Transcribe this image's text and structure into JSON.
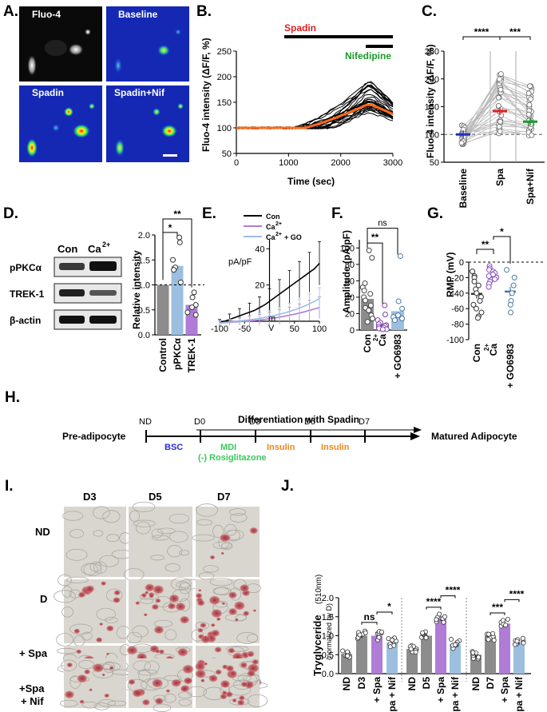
{
  "panels": {
    "A": {
      "label": "A.",
      "images": [
        "Fluo-4",
        "Baseline",
        "Spadin",
        "Spadin+Nif"
      ]
    },
    "B": {
      "label": "B.",
      "bars": [
        "Spadin",
        "Nifedipine"
      ],
      "ylabel": "Fluo-4 intensity (ΔF/F, %)",
      "xlabel": "Time (sec)",
      "yticks": [
        "50",
        "100",
        "150",
        "200",
        "250"
      ],
      "xticks": [
        "0",
        "1000",
        "2000",
        "3000"
      ]
    },
    "C": {
      "label": "C.",
      "ylabel": "Fluo-4 intensity (ΔF/F, %)",
      "yticks": [
        "50",
        "100",
        "150",
        "200",
        "250"
      ],
      "categories": [
        "Baseline",
        "Spa",
        "Spa+Nif"
      ],
      "sig": [
        "****",
        "***"
      ]
    },
    "D": {
      "label": "D.",
      "blot_cols": [
        "Con",
        "Ca"
      ],
      "blot_sup": "2+",
      "blot_rows": [
        "pPKCα",
        "TREK-1",
        "β-actin"
      ],
      "ylabel": "Relative intensity",
      "yticks": [
        "0.0",
        "0.5",
        "1.0",
        "1.5",
        "2.0"
      ],
      "categories": [
        "Control",
        "pPKCα",
        "TREK-1"
      ],
      "sig": [
        "*",
        "**"
      ]
    },
    "E": {
      "label": "E.",
      "legend": [
        "Con",
        "Ca",
        "Ca"
      ],
      "legend_sup": "2+",
      "legend_extra": "+ GO",
      "ylabel": "pA/pF",
      "xunit_m": "m",
      "xunit_v": "V",
      "yticks": [
        "20",
        "40"
      ],
      "xticks": [
        "-100",
        "-50",
        "50",
        "100"
      ]
    },
    "F": {
      "label": "F.",
      "ylabel": "Amplitude (pA/pF)",
      "yticks": [
        "0",
        "20",
        "40",
        "60",
        "80",
        "100"
      ],
      "categories": [
        "Con",
        "Ca",
        "+ GO6983"
      ],
      "sup": "2+",
      "sig": [
        "**",
        "ns"
      ]
    },
    "G": {
      "label": "G.",
      "ylabel": "RMP (mV)",
      "yticks": [
        "0",
        "-20",
        "-40",
        "-60",
        "-80",
        "-100"
      ],
      "categories": [
        "Con",
        "Ca",
        "+ GO6983"
      ],
      "sup": "2+",
      "sig": [
        "**",
        "*"
      ]
    },
    "H": {
      "label": "H.",
      "title": "Differentiation with Spadin",
      "start": "Pre-adipocyte",
      "end": "Matured Adipocyte",
      "days": [
        "ND",
        "D0",
        "D3",
        "D5",
        "D7"
      ],
      "steps": [
        "BSC",
        "MDI",
        "(-) Rosiglitazone",
        "Insulin",
        "Insulin"
      ]
    },
    "I": {
      "label": "I.",
      "cols": [
        "D3",
        "D5",
        "D7"
      ],
      "rows": [
        "ND",
        "D",
        "+ Spa",
        "+Spa",
        "+ Nif"
      ]
    },
    "J": {
      "label": "J.",
      "ylabel": "Tryglyceride",
      "ylabel_unit": "(510nm)",
      "ylabel2": "(normalized by D)",
      "yticks": [
        "0.0",
        "0.5",
        "1.0",
        "1.5",
        "2.0"
      ],
      "groups": [
        {
          "cats": [
            "ND",
            "D3",
            "+ Spa",
            "+ Spa + Nif"
          ],
          "sig": [
            "ns",
            "*"
          ]
        },
        {
          "cats": [
            "ND",
            "D5",
            "+ Spa",
            "+ Spa + Nif"
          ],
          "sig": [
            "****",
            "****"
          ]
        },
        {
          "cats": [
            "ND",
            "D7",
            "+ Spa",
            "+ Spa + Nif"
          ],
          "sig": [
            "***",
            "****"
          ]
        }
      ]
    }
  },
  "colors": {
    "orange": "#ff6a1a",
    "red": "#e02020",
    "green": "#1a9a2a",
    "gray": "#8c8c8c",
    "purple": "#b07cd6",
    "blue": "#9cbfe0",
    "mdi": "#38c95a",
    "bsc": "#2a2adf",
    "insulin": "#e88a1a"
  },
  "chart_data": [
    {
      "type": "bar",
      "title": "C",
      "categories": [
        "Baseline",
        "Spa",
        "Spa+Nif"
      ],
      "values": [
        100,
        142,
        123
      ],
      "ylim": [
        50,
        250
      ],
      "ylabel": "Fluo-4 intensity (ΔF/F, %)"
    },
    {
      "type": "bar",
      "title": "D",
      "categories": [
        "Control",
        "pPKCα",
        "TREK-1"
      ],
      "values": [
        1.0,
        1.38,
        0.6
      ],
      "points": [
        [],
        [
          1.95,
          1.85,
          1.5,
          1.35,
          1.3,
          1.05
        ],
        [
          0.85,
          0.75,
          0.6,
          0.55,
          0.45,
          0.4
        ]
      ],
      "ylim": [
        0,
        2.0
      ]
    },
    {
      "type": "line",
      "title": "E",
      "x": [
        -100,
        -90,
        -80,
        -70,
        -60,
        -50,
        -40,
        -30,
        -20,
        -10,
        0,
        10,
        20,
        30,
        40,
        50,
        60,
        70,
        80,
        90,
        100
      ],
      "series": [
        {
          "name": "Con",
          "values": [
            -1,
            0,
            1,
            2,
            3,
            4,
            5,
            6,
            7.5,
            9,
            11,
            13,
            15,
            17,
            19,
            21,
            23,
            25,
            27,
            29,
            32
          ]
        },
        {
          "name": "Ca2+",
          "values": [
            -1,
            -0.8,
            -0.6,
            -0.4,
            -0.2,
            0,
            0.2,
            0.4,
            0.7,
            1,
            1.4,
            1.8,
            2.3,
            2.8,
            3.3,
            3.9,
            4.5,
            5.2,
            6,
            6.8,
            7.5
          ]
        },
        {
          "name": "Ca2+ + GO",
          "values": [
            -1,
            -0.7,
            -0.4,
            -0.1,
            0.2,
            0.5,
            0.8,
            1.2,
            1.6,
            2.1,
            2.6,
            3.2,
            3.9,
            4.6,
            5.4,
            6.3,
            7.3,
            8.4,
            9.6,
            11,
            12.5
          ]
        }
      ],
      "xlim": [
        -100,
        100
      ],
      "ylim": [
        0,
        45
      ]
    },
    {
      "type": "bar",
      "title": "F",
      "categories": [
        "Con",
        "Ca2+",
        "+ GO6983"
      ],
      "values": [
        38,
        7,
        23
      ],
      "points": [
        [
          97,
          88,
          57,
          52,
          48,
          44,
          40,
          36,
          30,
          27,
          24,
          18,
          14,
          10
        ],
        [
          30,
          19,
          12,
          9,
          7,
          6,
          5,
          4,
          3,
          2,
          2,
          1,
          1
        ],
        [
          90,
          35,
          26,
          18,
          16,
          14,
          12
        ]
      ],
      "ylim": [
        0,
        110
      ]
    },
    {
      "type": "bar",
      "title": "G",
      "categories": [
        "Con",
        "Ca2+",
        "+ GO6983"
      ],
      "values": [
        -41,
        -19,
        -38
      ],
      "points": [
        [
          -12,
          -18,
          -20,
          -25,
          -30,
          -35,
          -40,
          -45,
          -50,
          -55,
          -60,
          -65,
          -70,
          -72
        ],
        [
          -5,
          -8,
          -10,
          -12,
          -14,
          -16,
          -18,
          -20,
          -22,
          -25,
          -28,
          -32
        ],
        [
          -10,
          -20,
          -30,
          -40,
          -50,
          -55,
          -65
        ]
      ],
      "ylim": [
        -100,
        0
      ]
    },
    {
      "type": "bar",
      "title": "J",
      "categories": [
        "ND",
        "D3",
        "+ Spa",
        "+ Spa + Nif",
        "ND",
        "D5",
        "+ Spa",
        "+ Spa + Nif",
        "ND",
        "D7",
        "+ Spa",
        "+ Spa + Nif"
      ],
      "values": [
        0.52,
        1.0,
        1.0,
        0.82,
        0.65,
        1.0,
        1.45,
        0.78,
        0.5,
        1.0,
        1.32,
        0.82
      ],
      "ylim": [
        0,
        2.0
      ]
    }
  ]
}
